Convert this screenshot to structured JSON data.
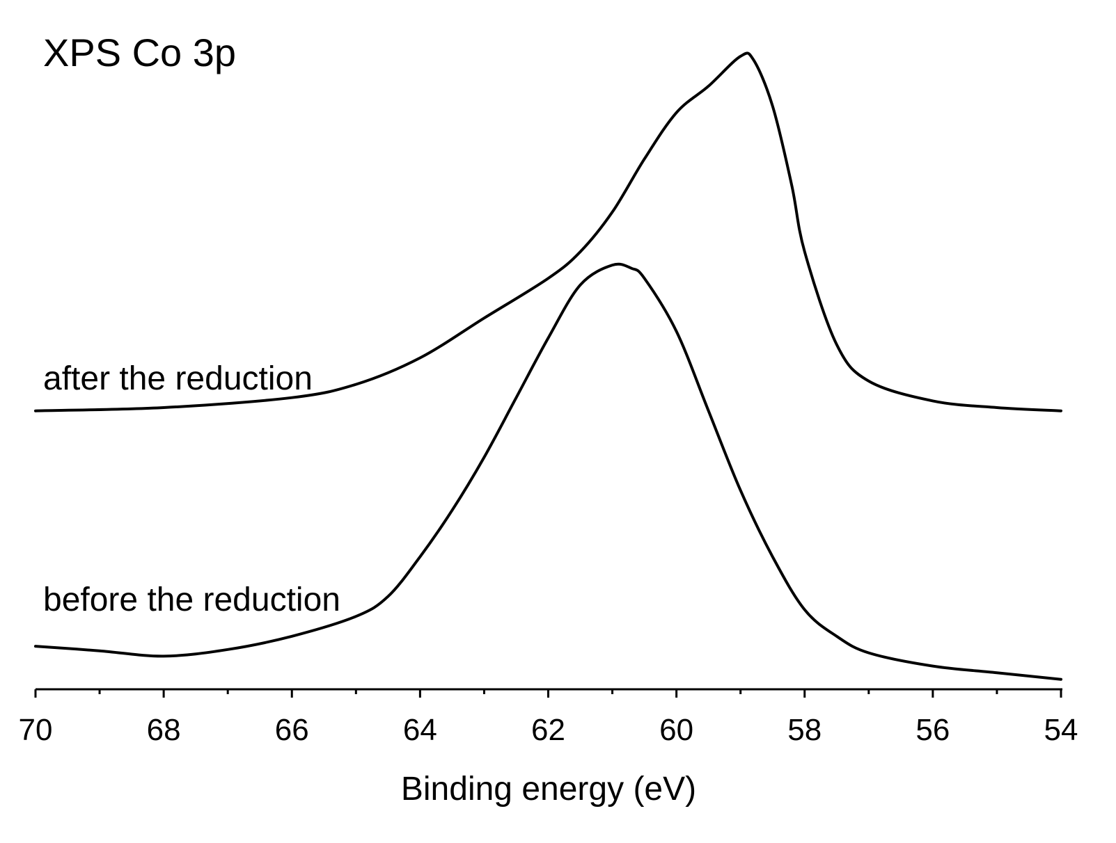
{
  "chart_data": {
    "type": "line",
    "title": "XPS Co 3p",
    "xlabel": "Binding energy (eV)",
    "ylabel": "",
    "xlim": [
      70,
      54
    ],
    "ylim": [
      0,
      1
    ],
    "x_major_ticks": [
      70,
      68,
      66,
      64,
      62,
      60,
      58,
      56,
      54
    ],
    "x_tick_labels": [
      "70",
      "68",
      "66",
      "64",
      "62",
      "60",
      "58",
      "56",
      "54"
    ],
    "x_minor_ticks": [
      69,
      67,
      65,
      63,
      61,
      59,
      57,
      55
    ],
    "series": [
      {
        "name": "after the reduction",
        "x": [
          70,
          68,
          66,
          65,
          64,
          63,
          62,
          61.5,
          61,
          60.5,
          60,
          59.5,
          59,
          58.8,
          58.5,
          58.2,
          58,
          57.5,
          57,
          56,
          55,
          54
        ],
        "y": [
          0.42,
          0.425,
          0.44,
          0.46,
          0.5,
          0.56,
          0.62,
          0.66,
          0.72,
          0.8,
          0.87,
          0.91,
          0.955,
          0.95,
          0.88,
          0.76,
          0.66,
          0.52,
          0.465,
          0.435,
          0.425,
          0.42
        ]
      },
      {
        "name": "before the reduction",
        "x": [
          70,
          69,
          68,
          67,
          66,
          65,
          64.5,
          64,
          63.5,
          63,
          62.5,
          62,
          61.5,
          61,
          60.7,
          60.5,
          60,
          59.5,
          59,
          58.5,
          58,
          57.5,
          57,
          56,
          55,
          54
        ],
        "y": [
          0.065,
          0.058,
          0.05,
          0.06,
          0.08,
          0.11,
          0.14,
          0.2,
          0.27,
          0.35,
          0.44,
          0.53,
          0.61,
          0.64,
          0.635,
          0.62,
          0.54,
          0.42,
          0.3,
          0.2,
          0.12,
          0.08,
          0.055,
          0.035,
          0.025,
          0.015
        ]
      }
    ]
  }
}
